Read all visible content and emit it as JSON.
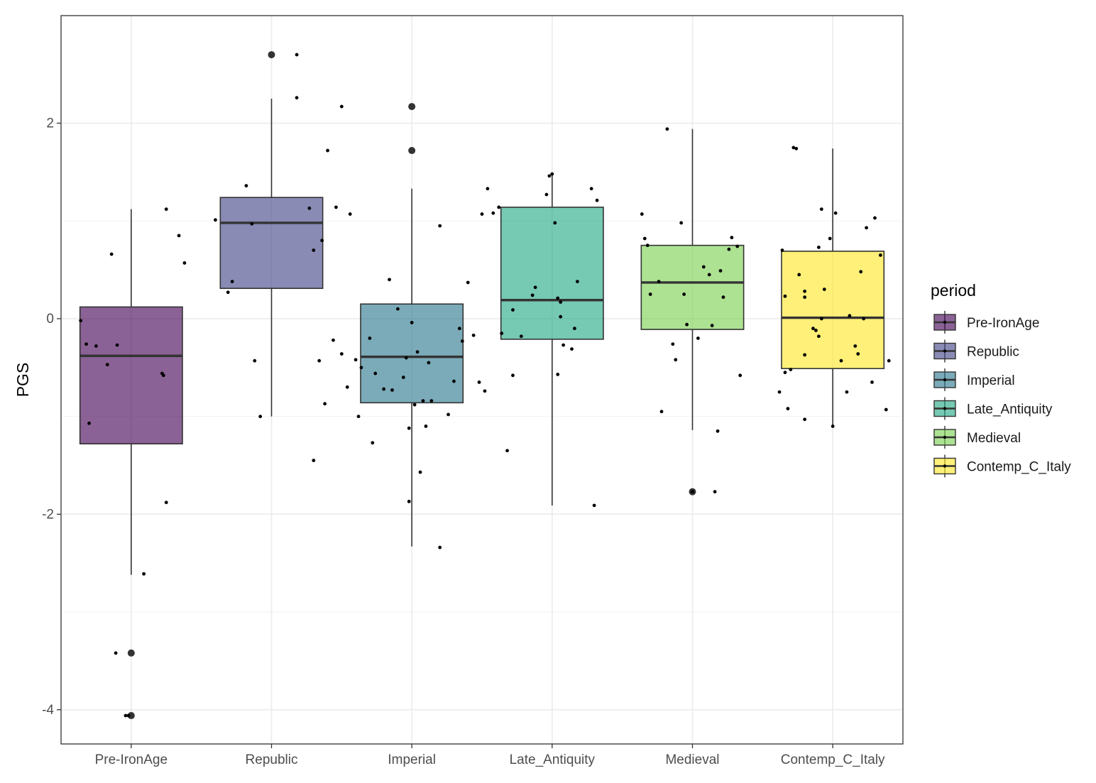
{
  "chart_data": {
    "type": "box",
    "xlabel": "",
    "ylabel": "PGS",
    "ylim": [
      -4.35,
      3.1
    ],
    "yticks": [
      -4,
      -2,
      0,
      2
    ],
    "ytick_labels": [
      "-4",
      "-2",
      "0",
      "2"
    ],
    "grid": true,
    "legend": {
      "title": "period",
      "placement": "right"
    },
    "categories": [
      "Pre-IronAge",
      "Republic",
      "Imperial",
      "Late_Antiquity",
      "Medieval",
      "Contemp_C_Italy"
    ],
    "colors": [
      "#440154",
      "#414487",
      "#2a788e",
      "#22a884",
      "#7ad151",
      "#fde725"
    ],
    "boxes": [
      {
        "name": "Pre-IronAge",
        "q1": -1.28,
        "median": -0.38,
        "q3": 0.12,
        "whisker_low": -2.62,
        "whisker_high": 1.12,
        "outliers": [
          -3.42,
          -4.06
        ]
      },
      {
        "name": "Republic",
        "q1": 0.31,
        "median": 0.98,
        "q3": 1.24,
        "whisker_low": -1.0,
        "whisker_high": 2.25,
        "outliers": [
          2.7
        ]
      },
      {
        "name": "Imperial",
        "q1": -0.86,
        "median": -0.39,
        "q3": 0.15,
        "whisker_low": -2.33,
        "whisker_high": 1.33,
        "outliers": [
          2.17,
          1.72
        ]
      },
      {
        "name": "Late_Antiquity",
        "q1": -0.21,
        "median": 0.19,
        "q3": 1.14,
        "whisker_low": -1.91,
        "whisker_high": 1.48,
        "outliers": []
      },
      {
        "name": "Medieval",
        "q1": -0.11,
        "median": 0.37,
        "q3": 0.75,
        "whisker_low": -1.14,
        "whisker_high": 1.94,
        "outliers": [
          -1.77
        ]
      },
      {
        "name": "Contemp_C_Italy",
        "q1": -0.51,
        "median": 0.01,
        "q3": 0.69,
        "whisker_low": -1.09,
        "whisker_high": 1.74,
        "outliers": []
      }
    ],
    "jitter": [
      {
        "name": "Pre-IronAge",
        "points": [
          [
            -0.36,
            -0.02
          ],
          [
            -0.32,
            -0.26
          ],
          [
            -0.25,
            -0.28
          ],
          [
            -0.1,
            -0.27
          ],
          [
            -0.17,
            -0.47
          ],
          [
            0.22,
            -0.56
          ],
          [
            0.23,
            -0.58
          ],
          [
            -0.3,
            -1.07
          ],
          [
            0.25,
            1.12
          ],
          [
            0.34,
            0.85
          ],
          [
            0.38,
            0.57
          ],
          [
            -0.14,
            0.66
          ],
          [
            0.25,
            -1.88
          ],
          [
            0.09,
            -2.61
          ],
          [
            -0.11,
            -3.42
          ],
          [
            -0.04,
            -4.06
          ],
          [
            -0.02,
            -4.06
          ]
        ]
      },
      {
        "name": "Republic",
        "points": [
          [
            -0.4,
            1.01
          ],
          [
            -0.18,
            1.36
          ],
          [
            -0.14,
            0.97
          ],
          [
            -0.28,
            0.38
          ],
          [
            -0.31,
            0.27
          ],
          [
            0.27,
            1.13
          ],
          [
            0.36,
            0.8
          ],
          [
            -0.12,
            -0.43
          ],
          [
            -0.08,
            -1.0
          ],
          [
            0.18,
            2.26
          ],
          [
            0.18,
            2.7
          ]
        ]
      },
      {
        "name": "Imperial",
        "points": [
          [
            -0.7,
            0.7
          ],
          [
            -0.6,
            1.72
          ],
          [
            -0.54,
            1.14
          ],
          [
            -0.5,
            2.17
          ],
          [
            -0.44,
            1.07
          ],
          [
            -0.3,
            -0.2
          ],
          [
            -0.16,
            0.4
          ],
          [
            -0.1,
            0.1
          ],
          [
            0.0,
            -0.04
          ],
          [
            0.12,
            -0.45
          ],
          [
            0.2,
            0.95
          ],
          [
            0.3,
            -0.64
          ],
          [
            0.34,
            -0.1
          ],
          [
            0.4,
            0.37
          ],
          [
            0.44,
            -0.17
          ],
          [
            0.5,
            1.07
          ],
          [
            0.54,
            1.33
          ],
          [
            0.58,
            1.08
          ],
          [
            -0.66,
            -0.43
          ],
          [
            -0.56,
            -0.22
          ],
          [
            -0.5,
            -0.36
          ],
          [
            -0.46,
            -0.7
          ],
          [
            -0.4,
            -0.42
          ],
          [
            -0.36,
            -0.5
          ],
          [
            -0.28,
            -1.27
          ],
          [
            -0.2,
            -0.72
          ],
          [
            -0.14,
            -0.73
          ],
          [
            -0.06,
            -0.6
          ],
          [
            0.02,
            -0.88
          ],
          [
            0.08,
            -0.84
          ],
          [
            0.14,
            -0.84
          ],
          [
            -0.62,
            -0.87
          ],
          [
            -0.38,
            -1.0
          ],
          [
            -0.02,
            -1.12
          ],
          [
            0.06,
            -1.57
          ],
          [
            0.1,
            -1.1
          ],
          [
            -0.02,
            -1.87
          ],
          [
            0.2,
            -2.34
          ],
          [
            -0.7,
            -1.45
          ],
          [
            0.26,
            -0.98
          ],
          [
            0.48,
            -0.65
          ],
          [
            0.52,
            -0.74
          ],
          [
            -0.04,
            -0.4
          ],
          [
            0.04,
            -0.34
          ],
          [
            -0.26,
            -0.56
          ],
          [
            0.36,
            -0.23
          ]
        ]
      },
      {
        "name": "Late_Antiquity",
        "points": [
          [
            -0.38,
            1.14
          ],
          [
            -0.28,
            0.09
          ],
          [
            -0.22,
            -0.18
          ],
          [
            -0.14,
            0.24
          ],
          [
            -0.12,
            0.32
          ],
          [
            -0.04,
            1.27
          ],
          [
            -0.02,
            1.46
          ],
          [
            0.0,
            1.48
          ],
          [
            0.02,
            0.98
          ],
          [
            0.04,
            0.21
          ],
          [
            0.06,
            0.17
          ],
          [
            0.14,
            -0.31
          ],
          [
            0.16,
            -0.1
          ],
          [
            0.18,
            0.38
          ],
          [
            0.28,
            1.33
          ],
          [
            0.32,
            1.21
          ],
          [
            -0.36,
            -0.15
          ],
          [
            -0.28,
            -0.58
          ],
          [
            -0.32,
            -1.35
          ],
          [
            0.08,
            -0.27
          ],
          [
            0.06,
            0.02
          ],
          [
            0.04,
            -0.57
          ],
          [
            0.3,
            -1.91
          ]
        ]
      },
      {
        "name": "Medieval",
        "points": [
          [
            -0.36,
            1.07
          ],
          [
            -0.34,
            0.82
          ],
          [
            -0.32,
            0.75
          ],
          [
            -0.3,
            0.25
          ],
          [
            -0.22,
            -0.95
          ],
          [
            -0.18,
            1.94
          ],
          [
            -0.14,
            -0.26
          ],
          [
            -0.12,
            -0.42
          ],
          [
            -0.08,
            0.98
          ],
          [
            -0.06,
            0.25
          ],
          [
            -0.04,
            -0.06
          ],
          [
            0.04,
            -0.2
          ],
          [
            0.08,
            0.53
          ],
          [
            0.12,
            0.45
          ],
          [
            0.14,
            -0.07
          ],
          [
            0.2,
            0.49
          ],
          [
            0.22,
            0.22
          ],
          [
            0.26,
            0.71
          ],
          [
            0.28,
            0.83
          ],
          [
            0.32,
            0.74
          ],
          [
            0.34,
            -0.58
          ],
          [
            0.18,
            -1.15
          ],
          [
            0.16,
            -1.77
          ],
          [
            0.0,
            -1.77
          ],
          [
            -0.24,
            0.38
          ]
        ]
      },
      {
        "name": "Contemp_C_Italy",
        "points": [
          [
            -0.36,
            0.7
          ],
          [
            -0.34,
            0.23
          ],
          [
            -0.34,
            -0.55
          ],
          [
            -0.38,
            -0.75
          ],
          [
            -0.28,
            1.75
          ],
          [
            -0.26,
            1.74
          ],
          [
            -0.24,
            0.45
          ],
          [
            -0.2,
            0.28
          ],
          [
            -0.2,
            0.22
          ],
          [
            -0.14,
            -0.1
          ],
          [
            -0.12,
            -0.12
          ],
          [
            -0.08,
            0.0
          ],
          [
            -0.06,
            0.3
          ],
          [
            -0.02,
            0.82
          ],
          [
            0.02,
            1.08
          ],
          [
            0.06,
            -0.43
          ],
          [
            0.1,
            -0.75
          ],
          [
            0.12,
            0.03
          ],
          [
            0.16,
            -0.28
          ],
          [
            0.18,
            -0.36
          ],
          [
            0.2,
            0.48
          ],
          [
            0.22,
            0.0
          ],
          [
            0.24,
            0.93
          ],
          [
            0.3,
            1.03
          ],
          [
            0.34,
            0.65
          ],
          [
            0.38,
            -0.93
          ],
          [
            0.4,
            -0.43
          ],
          [
            -0.32,
            -0.92
          ],
          [
            -0.2,
            -1.03
          ],
          [
            -0.1,
            -0.18
          ],
          [
            -0.3,
            -0.52
          ],
          [
            -0.2,
            -0.37
          ],
          [
            0.0,
            -1.1
          ],
          [
            0.28,
            -0.65
          ],
          [
            -0.08,
            1.12
          ],
          [
            -0.1,
            0.73
          ]
        ]
      }
    ]
  }
}
